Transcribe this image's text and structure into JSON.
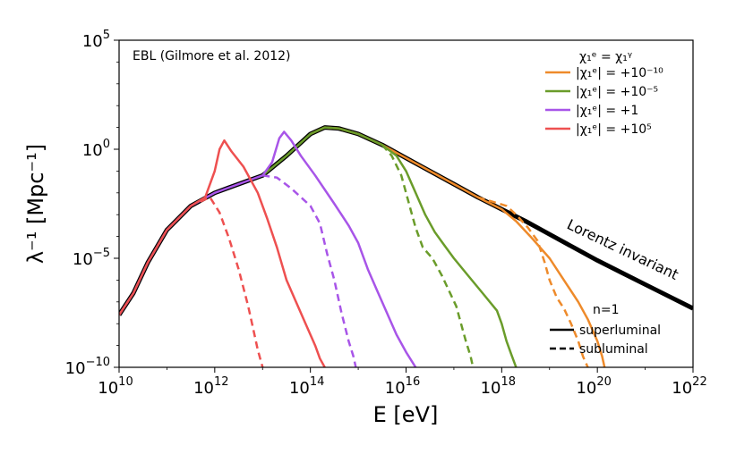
{
  "chart_data": {
    "type": "line",
    "title": "",
    "xlabel": "E [eV]",
    "ylabel": "λ⁻¹ [Mpc⁻¹]",
    "xscale": "log",
    "yscale": "log",
    "xlim_exp": [
      10,
      22
    ],
    "ylim_exp": [
      -10,
      5
    ],
    "x_ticks": [
      {
        "exp": 10,
        "base": "10",
        "sup": "10"
      },
      {
        "exp": 12,
        "base": "10",
        "sup": "12"
      },
      {
        "exp": 14,
        "base": "10",
        "sup": "14"
      },
      {
        "exp": 16,
        "base": "10",
        "sup": "16"
      },
      {
        "exp": 18,
        "base": "10",
        "sup": "18"
      },
      {
        "exp": 20,
        "base": "10",
        "sup": "20"
      },
      {
        "exp": 22,
        "base": "10",
        "sup": "22"
      }
    ],
    "y_ticks": [
      {
        "exp": -10,
        "base": "10",
        "sup": "−10"
      },
      {
        "exp": -5,
        "base": "10",
        "sup": "−5"
      },
      {
        "exp": 0,
        "base": "10",
        "sup": "0"
      },
      {
        "exp": 5,
        "base": "10",
        "sup": "5"
      }
    ],
    "annotations": {
      "ebl": "EBL (Gilmore et al. 2012)",
      "lorentz": "Lorentz invariant",
      "legend_title": "χ₁ᵉ = χ₁ᵞ",
      "n_label": "n=1",
      "superluminal": "superluminal",
      "subluminal": "subluminal"
    },
    "series": [
      {
        "name": "Lorentz invariant",
        "legend": "",
        "color": "#000000",
        "width": 5,
        "dash": "",
        "points": [
          [
            10.0,
            -7.6
          ],
          [
            10.3,
            -6.6
          ],
          [
            10.6,
            -5.2
          ],
          [
            11.0,
            -3.7
          ],
          [
            11.5,
            -2.6
          ],
          [
            12.0,
            -2.0
          ],
          [
            12.5,
            -1.6
          ],
          [
            13.0,
            -1.2
          ],
          [
            13.5,
            -0.3
          ],
          [
            14.0,
            0.7
          ],
          [
            14.3,
            1.0
          ],
          [
            14.6,
            0.95
          ],
          [
            15.0,
            0.7
          ],
          [
            15.5,
            0.2
          ],
          [
            16.0,
            -0.4
          ],
          [
            16.5,
            -1.0
          ],
          [
            17.0,
            -1.6
          ],
          [
            17.5,
            -2.2
          ],
          [
            18.0,
            -2.75
          ],
          [
            18.5,
            -3.3
          ],
          [
            19.0,
            -3.9
          ],
          [
            19.5,
            -4.5
          ],
          [
            20.0,
            -5.1
          ],
          [
            20.5,
            -5.65
          ],
          [
            21.0,
            -6.2
          ],
          [
            21.5,
            -6.75
          ],
          [
            22.0,
            -7.3
          ]
        ]
      },
      {
        "name": "chi_1e=+1e-10 superluminal",
        "legend": "|χ₁ᵉ| = +10⁻¹⁰",
        "color": "#ee8a2a",
        "width": 2.5,
        "dash": "",
        "points": [
          [
            14.0,
            0.7
          ],
          [
            14.3,
            1.0
          ],
          [
            14.6,
            0.95
          ],
          [
            15.0,
            0.7
          ],
          [
            15.5,
            0.2
          ],
          [
            16.0,
            -0.4
          ],
          [
            16.5,
            -1.0
          ],
          [
            17.0,
            -1.6
          ],
          [
            17.5,
            -2.2
          ],
          [
            18.0,
            -2.75
          ],
          [
            18.3,
            -3.3
          ],
          [
            18.6,
            -4.0
          ],
          [
            19.0,
            -5.0
          ],
          [
            19.3,
            -6.0
          ],
          [
            19.6,
            -7.0
          ],
          [
            19.8,
            -7.8
          ],
          [
            20.0,
            -8.8
          ],
          [
            20.1,
            -9.5
          ],
          [
            20.15,
            -10.0
          ]
        ]
      },
      {
        "name": "chi_1e=+1e-10 subluminal",
        "legend": "",
        "color": "#ee8a2a",
        "width": 2.5,
        "dash": "8,5",
        "points": [
          [
            17.5,
            -2.2
          ],
          [
            17.8,
            -2.4
          ],
          [
            18.1,
            -2.6
          ],
          [
            18.3,
            -3.0
          ],
          [
            18.55,
            -3.6
          ],
          [
            18.75,
            -4.2
          ],
          [
            18.9,
            -5.2
          ],
          [
            19.0,
            -6.0
          ],
          [
            19.15,
            -6.8
          ],
          [
            19.3,
            -7.3
          ],
          [
            19.45,
            -8.0
          ],
          [
            19.6,
            -8.8
          ],
          [
            19.7,
            -9.5
          ],
          [
            19.8,
            -10.0
          ]
        ]
      },
      {
        "name": "chi_1e=+1e-5 superluminal",
        "legend": "|χ₁ᵉ| = +10⁻⁵",
        "color": "#6a9c2a",
        "width": 2.5,
        "dash": "",
        "points": [
          [
            13.0,
            -1.2
          ],
          [
            13.5,
            -0.3
          ],
          [
            14.0,
            0.7
          ],
          [
            14.3,
            1.0
          ],
          [
            14.6,
            0.95
          ],
          [
            15.0,
            0.7
          ],
          [
            15.5,
            0.2
          ],
          [
            15.8,
            -0.3
          ],
          [
            16.0,
            -1.0
          ],
          [
            16.2,
            -2.0
          ],
          [
            16.4,
            -3.0
          ],
          [
            16.6,
            -3.8
          ],
          [
            16.8,
            -4.4
          ],
          [
            17.0,
            -5.0
          ],
          [
            17.3,
            -5.8
          ],
          [
            17.6,
            -6.6
          ],
          [
            17.9,
            -7.4
          ],
          [
            18.0,
            -8.0
          ],
          [
            18.1,
            -8.8
          ],
          [
            18.2,
            -9.4
          ],
          [
            18.3,
            -10.0
          ]
        ]
      },
      {
        "name": "chi_1e=+1e-5 subluminal",
        "legend": "",
        "color": "#6a9c2a",
        "width": 2.5,
        "dash": "8,5",
        "points": [
          [
            15.5,
            0.2
          ],
          [
            15.7,
            -0.3
          ],
          [
            15.9,
            -1.2
          ],
          [
            16.0,
            -2.0
          ],
          [
            16.1,
            -2.8
          ],
          [
            16.2,
            -3.6
          ],
          [
            16.35,
            -4.5
          ],
          [
            16.55,
            -5.0
          ],
          [
            16.75,
            -5.8
          ],
          [
            16.9,
            -6.5
          ],
          [
            17.05,
            -7.2
          ],
          [
            17.15,
            -8.0
          ],
          [
            17.25,
            -8.8
          ],
          [
            17.35,
            -9.5
          ],
          [
            17.4,
            -10.0
          ]
        ]
      },
      {
        "name": "chi_1e=+1 superluminal",
        "legend": "|χ₁ᵉ| = +1",
        "color": "#a855e8",
        "width": 2.5,
        "dash": "",
        "points": [
          [
            10.0,
            -7.6
          ],
          [
            10.3,
            -6.6
          ],
          [
            10.6,
            -5.2
          ],
          [
            11.0,
            -3.7
          ],
          [
            11.5,
            -2.6
          ],
          [
            12.0,
            -2.0
          ],
          [
            12.5,
            -1.6
          ],
          [
            13.0,
            -1.2
          ],
          [
            13.2,
            -0.6
          ],
          [
            13.35,
            0.5
          ],
          [
            13.45,
            0.8
          ],
          [
            13.6,
            0.4
          ],
          [
            13.8,
            -0.3
          ],
          [
            14.1,
            -1.2
          ],
          [
            14.5,
            -2.5
          ],
          [
            14.8,
            -3.5
          ],
          [
            15.0,
            -4.3
          ],
          [
            15.2,
            -5.5
          ],
          [
            15.4,
            -6.5
          ],
          [
            15.6,
            -7.5
          ],
          [
            15.8,
            -8.5
          ],
          [
            16.0,
            -9.3
          ],
          [
            16.2,
            -10.0
          ]
        ]
      },
      {
        "name": "chi_1e=+1 subluminal",
        "legend": "",
        "color": "#a855e8",
        "width": 2.5,
        "dash": "8,5",
        "points": [
          [
            13.0,
            -1.2
          ],
          [
            13.3,
            -1.3
          ],
          [
            13.6,
            -1.8
          ],
          [
            14.0,
            -2.6
          ],
          [
            14.2,
            -3.4
          ],
          [
            14.35,
            -4.8
          ],
          [
            14.5,
            -6.0
          ],
          [
            14.65,
            -7.5
          ],
          [
            14.8,
            -8.8
          ],
          [
            14.9,
            -9.5
          ],
          [
            14.95,
            -10.0
          ]
        ]
      },
      {
        "name": "chi_1e=+1e5 superluminal",
        "legend": "|χ₁ᵉ| = +10⁵",
        "color": "#ee5050",
        "width": 2.5,
        "dash": "",
        "points": [
          [
            10.0,
            -7.6
          ],
          [
            10.3,
            -6.6
          ],
          [
            10.6,
            -5.2
          ],
          [
            11.0,
            -3.7
          ],
          [
            11.5,
            -2.6
          ],
          [
            11.8,
            -2.2
          ],
          [
            12.0,
            -1.0
          ],
          [
            12.1,
            0.0
          ],
          [
            12.2,
            0.4
          ],
          [
            12.35,
            -0.1
          ],
          [
            12.6,
            -0.8
          ],
          [
            12.9,
            -2.0
          ],
          [
            13.1,
            -3.2
          ],
          [
            13.3,
            -4.5
          ],
          [
            13.5,
            -6.0
          ],
          [
            13.7,
            -7.0
          ],
          [
            13.9,
            -8.0
          ],
          [
            14.1,
            -9.0
          ],
          [
            14.2,
            -9.6
          ],
          [
            14.3,
            -10.0
          ]
        ]
      },
      {
        "name": "chi_1e=+1e5 subluminal",
        "legend": "",
        "color": "#ee5050",
        "width": 2.5,
        "dash": "8,5",
        "points": [
          [
            11.7,
            -2.4
          ],
          [
            11.9,
            -2.2
          ],
          [
            12.1,
            -2.9
          ],
          [
            12.3,
            -4.1
          ],
          [
            12.5,
            -5.5
          ],
          [
            12.7,
            -7.2
          ],
          [
            12.8,
            -8.2
          ],
          [
            12.9,
            -9.2
          ],
          [
            13.0,
            -10.0
          ]
        ]
      }
    ]
  }
}
